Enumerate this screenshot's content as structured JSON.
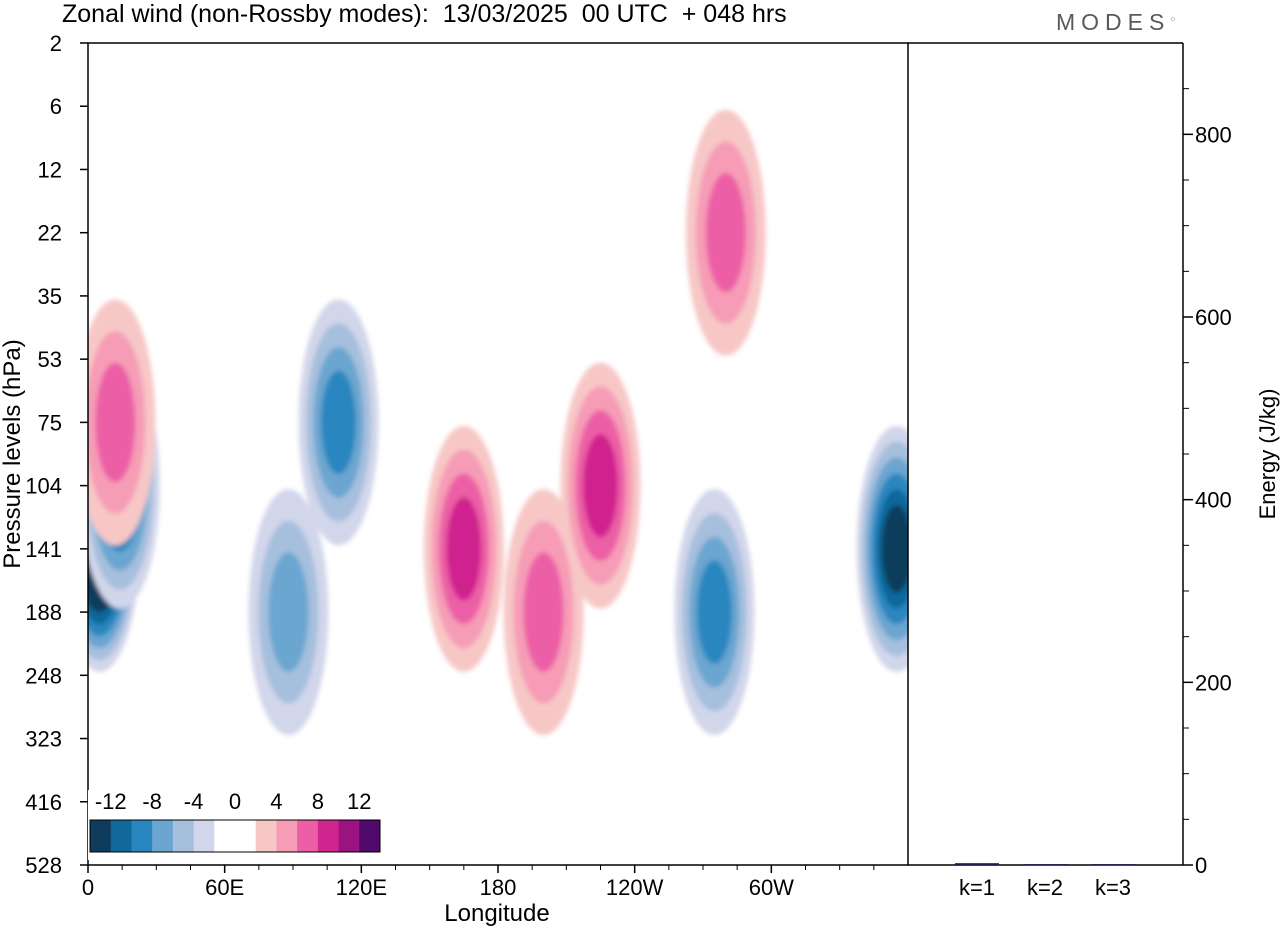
{
  "header": {
    "title": "Zonal wind (non-Rossby modes):  13/03/2025  00 UTC  + 048 hrs",
    "logo": "MODES"
  },
  "chart_data": [
    {
      "type": "heatmap",
      "title": "Zonal wind (non-Rossby modes):  13/03/2025  00 UTC  + 048 hrs",
      "xlabel": "Longitude",
      "ylabel": "Pressure levels (hPa)",
      "x_ticks": [
        "0",
        "60E",
        "120E",
        "180",
        "120W",
        "60W"
      ],
      "x_tick_values": [
        0,
        60,
        120,
        180,
        240,
        300
      ],
      "xlim": [
        0,
        360
      ],
      "y_ticks": [
        "2",
        "6",
        "12",
        "22",
        "35",
        "53",
        "75",
        "104",
        "141",
        "188",
        "248",
        "323",
        "416",
        "528"
      ],
      "colorbar": {
        "labels": [
          "-12",
          "-8",
          "-4",
          "0",
          "4",
          "8",
          "12"
        ],
        "colors": [
          "#0f3c5c",
          "#10689b",
          "#2a86bf",
          "#6aa6d0",
          "#a6bfdd",
          "#d2d6ea",
          "#ffffff",
          "#ffffff",
          "#f7c7c6",
          "#f69cb6",
          "#ec5fa6",
          "#d0248e",
          "#9a1380",
          "#4f0a6b"
        ]
      },
      "features": [
        {
          "lon": 5,
          "level": 141,
          "value": -16
        },
        {
          "lon": 14,
          "level": 104,
          "value": -10
        },
        {
          "lon": 355,
          "level": 141,
          "value": -12
        },
        {
          "lon": 110,
          "level": 75,
          "value": -9
        },
        {
          "lon": 275,
          "level": 188,
          "value": -8
        },
        {
          "lon": 88,
          "level": 188,
          "value": -7
        },
        {
          "lon": 165,
          "level": 141,
          "value": 8
        },
        {
          "lon": 200,
          "level": 188,
          "value": 7
        },
        {
          "lon": 225,
          "level": 104,
          "value": 8
        },
        {
          "lon": 12,
          "level": 75,
          "value": 7
        },
        {
          "lon": 280,
          "level": 22,
          "value": 6
        }
      ]
    },
    {
      "type": "bar",
      "ylabel": "Energy (J/kg)",
      "categories": [
        "k=1",
        "k=2",
        "k=3"
      ],
      "values": [
        2,
        1,
        1
      ],
      "ylim": [
        0,
        900
      ],
      "y_ticks": [
        0,
        200,
        400,
        600,
        800
      ]
    }
  ]
}
